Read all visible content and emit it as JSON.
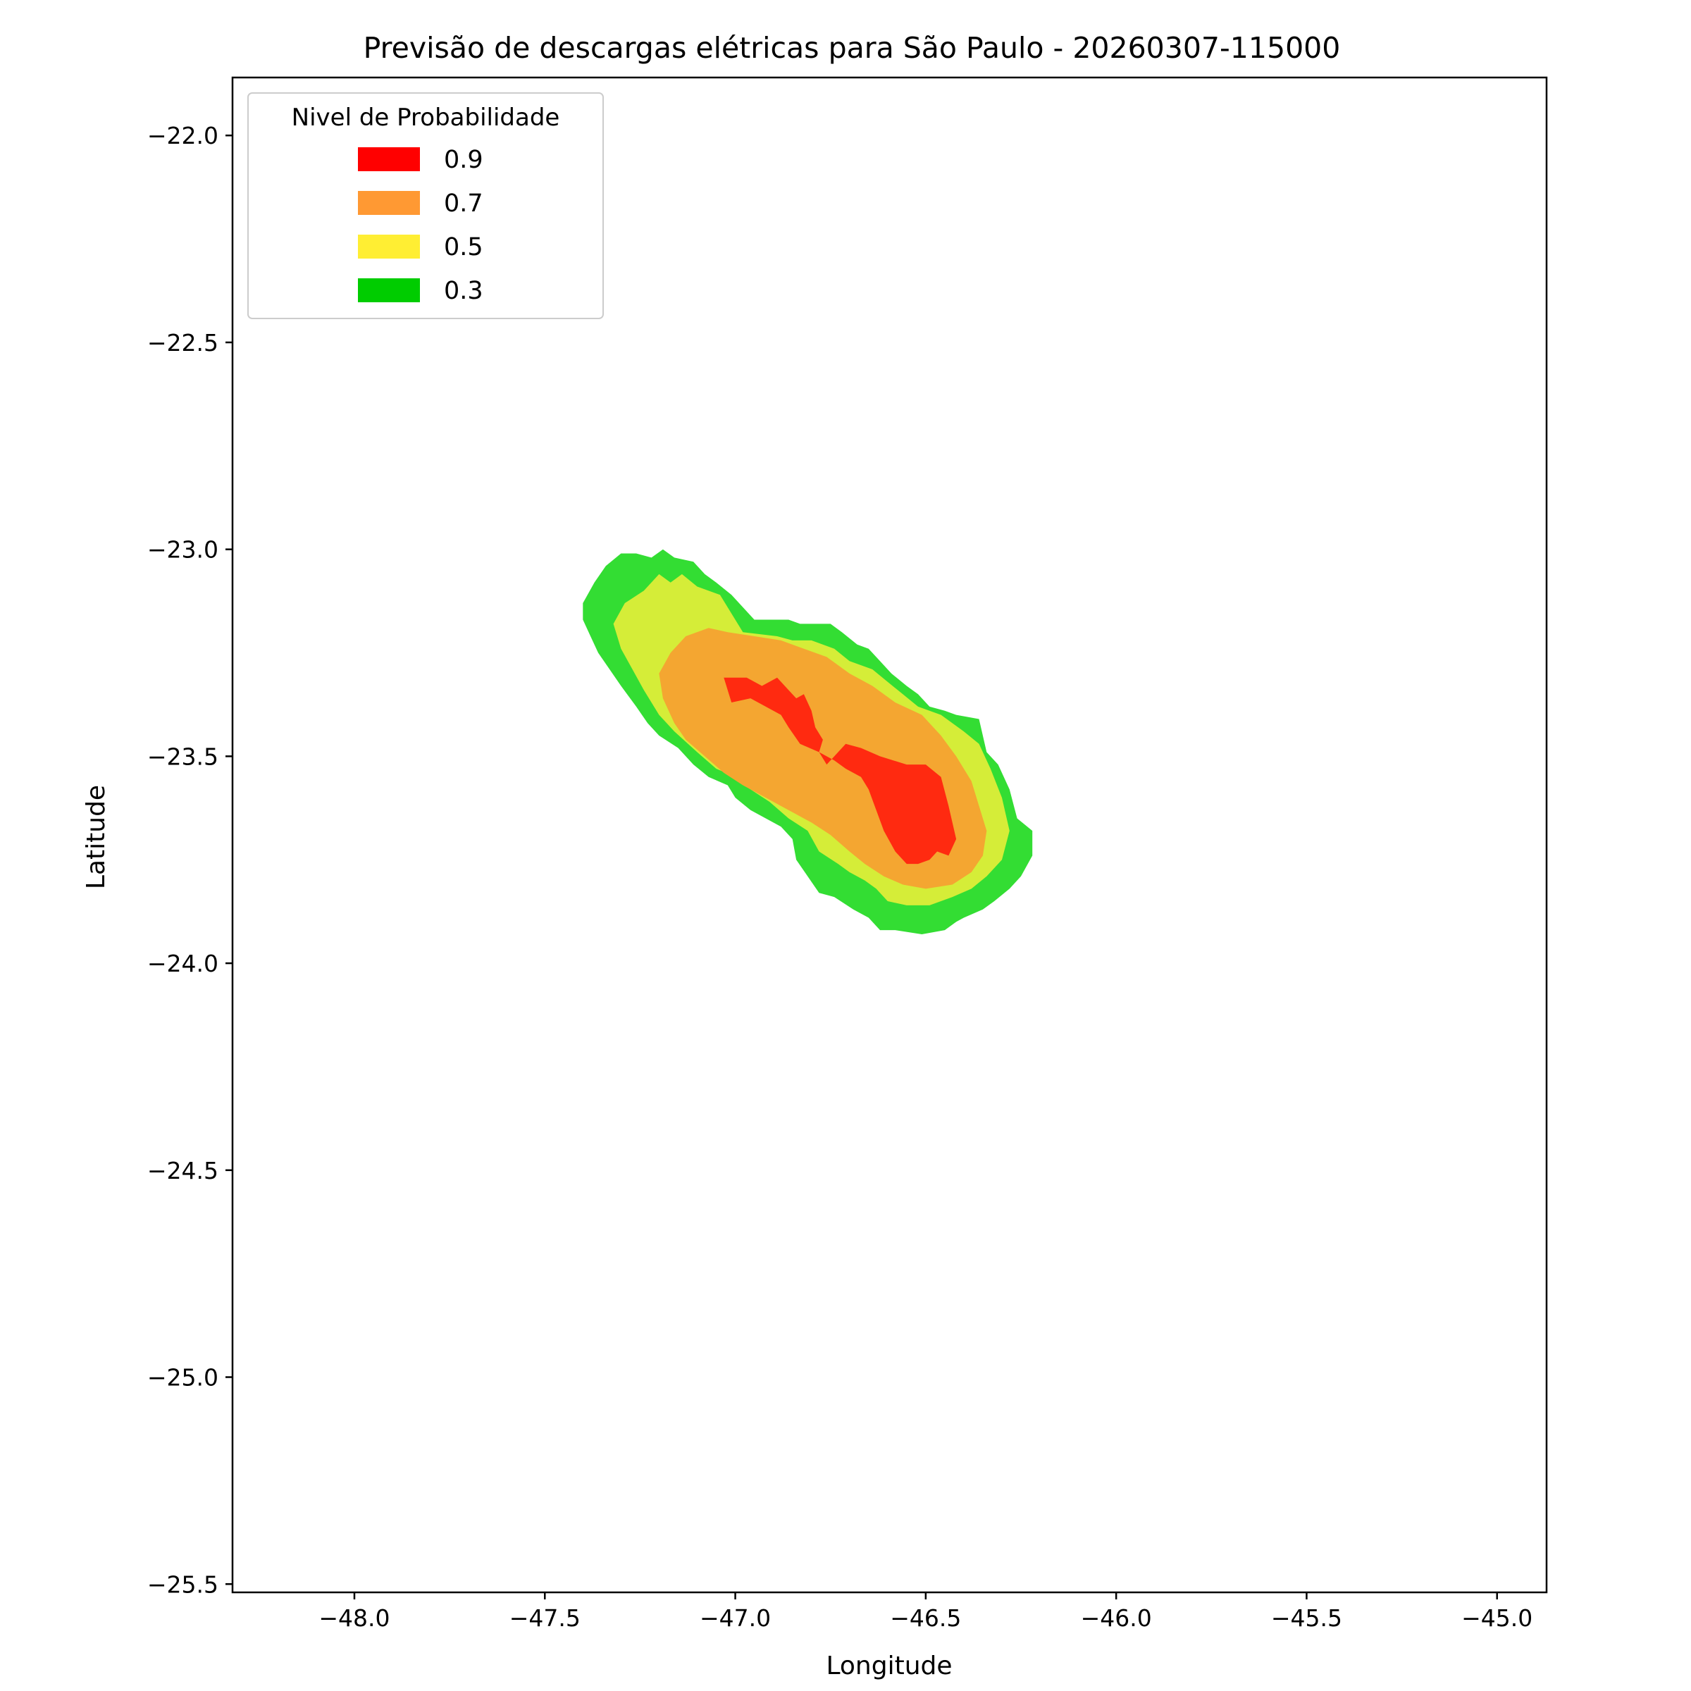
{
  "chart_data": {
    "type": "contour",
    "title": "Previsão de descargas elétricas para São Paulo - 20260307-115000",
    "xlabel": "Longitude",
    "ylabel": "Latitude",
    "xlim": [
      -48.32,
      -44.87
    ],
    "ylim": [
      -25.52,
      -21.86
    ],
    "xticks": [
      -48.0,
      -47.5,
      -47.0,
      -46.5,
      -46.0,
      -45.5,
      -45.0
    ],
    "xtick_labels": [
      "−48.0",
      "−47.5",
      "−47.0",
      "−46.5",
      "−46.0",
      "−45.5",
      "−45.0"
    ],
    "yticks": [
      -22.0,
      -22.5,
      -23.0,
      -23.5,
      -24.0,
      -24.5,
      -25.0,
      -25.5
    ],
    "ytick_labels": [
      "−22.0",
      "−22.5",
      "−23.0",
      "−23.5",
      "−24.0",
      "−24.5",
      "−25.0",
      "−25.5"
    ],
    "grid": false,
    "legend": {
      "title": "Nivel de Probabilidade",
      "placement": "upper-left",
      "entries": [
        {
          "label": "0.9",
          "color": "#ff0000"
        },
        {
          "label": "0.7",
          "color": "#ff9933"
        },
        {
          "label": "0.5",
          "color": "#ffee33"
        },
        {
          "label": "0.3",
          "color": "#00cc00"
        }
      ]
    },
    "regions": [
      {
        "level": "0.3",
        "color": "#33dd33",
        "polygons": [
          [
            [
              -47.19,
              -23.0
            ],
            [
              -47.16,
              -23.02
            ],
            [
              -47.11,
              -23.03
            ],
            [
              -47.08,
              -23.06
            ],
            [
              -47.05,
              -23.08
            ],
            [
              -47.01,
              -23.11
            ],
            [
              -46.98,
              -23.14
            ],
            [
              -46.95,
              -23.17
            ],
            [
              -46.86,
              -23.17
            ],
            [
              -46.83,
              -23.18
            ],
            [
              -46.75,
              -23.18
            ],
            [
              -46.72,
              -23.2
            ],
            [
              -46.68,
              -23.23
            ],
            [
              -46.65,
              -23.24
            ],
            [
              -46.62,
              -23.27
            ],
            [
              -46.59,
              -23.3
            ],
            [
              -46.55,
              -23.33
            ],
            [
              -46.52,
              -23.35
            ],
            [
              -46.49,
              -23.38
            ],
            [
              -46.45,
              -23.39
            ],
            [
              -46.42,
              -23.4
            ],
            [
              -46.36,
              -23.41
            ],
            [
              -46.34,
              -23.49
            ],
            [
              -46.31,
              -23.52
            ],
            [
              -46.28,
              -23.58
            ],
            [
              -46.26,
              -23.65
            ],
            [
              -46.22,
              -23.68
            ],
            [
              -46.22,
              -23.74
            ],
            [
              -46.25,
              -23.79
            ],
            [
              -46.28,
              -23.82
            ],
            [
              -46.32,
              -23.85
            ],
            [
              -46.35,
              -23.87
            ],
            [
              -46.4,
              -23.89
            ],
            [
              -46.42,
              -23.9
            ],
            [
              -46.45,
              -23.92
            ],
            [
              -46.51,
              -23.93
            ],
            [
              -46.58,
              -23.92
            ],
            [
              -46.62,
              -23.92
            ],
            [
              -46.65,
              -23.89
            ],
            [
              -46.69,
              -23.87
            ],
            [
              -46.74,
              -23.84
            ],
            [
              -46.78,
              -23.83
            ],
            [
              -46.81,
              -23.79
            ],
            [
              -46.84,
              -23.75
            ],
            [
              -46.85,
              -23.7
            ],
            [
              -46.88,
              -23.67
            ],
            [
              -46.92,
              -23.65
            ],
            [
              -46.96,
              -23.63
            ],
            [
              -47.0,
              -23.6
            ],
            [
              -47.02,
              -23.57
            ],
            [
              -47.07,
              -23.55
            ],
            [
              -47.11,
              -23.52
            ],
            [
              -47.15,
              -23.48
            ],
            [
              -47.2,
              -23.45
            ],
            [
              -47.23,
              -23.42
            ],
            [
              -47.26,
              -23.38
            ],
            [
              -47.3,
              -23.33
            ],
            [
              -47.33,
              -23.29
            ],
            [
              -47.36,
              -23.25
            ],
            [
              -47.38,
              -23.21
            ],
            [
              -47.4,
              -23.17
            ],
            [
              -47.4,
              -23.13
            ],
            [
              -47.37,
              -23.08
            ],
            [
              -47.34,
              -23.04
            ],
            [
              -47.3,
              -23.01
            ],
            [
              -47.26,
              -23.01
            ],
            [
              -47.22,
              -23.02
            ]
          ]
        ]
      },
      {
        "level": "0.5",
        "color": "#d5ed38",
        "polygons": [
          [
            [
              -47.2,
              -23.06
            ],
            [
              -47.17,
              -23.08
            ],
            [
              -47.14,
              -23.06
            ],
            [
              -47.1,
              -23.09
            ],
            [
              -47.04,
              -23.11
            ],
            [
              -46.98,
              -23.2
            ],
            [
              -46.89,
              -23.21
            ],
            [
              -46.85,
              -23.22
            ],
            [
              -46.8,
              -23.22
            ],
            [
              -46.74,
              -23.24
            ],
            [
              -46.7,
              -23.27
            ],
            [
              -46.64,
              -23.29
            ],
            [
              -46.6,
              -23.32
            ],
            [
              -46.56,
              -23.35
            ],
            [
              -46.52,
              -23.38
            ],
            [
              -46.46,
              -23.4
            ],
            [
              -46.4,
              -23.44
            ],
            [
              -46.36,
              -23.47
            ],
            [
              -46.33,
              -23.53
            ],
            [
              -46.3,
              -23.6
            ],
            [
              -46.28,
              -23.68
            ],
            [
              -46.3,
              -23.75
            ],
            [
              -46.34,
              -23.79
            ],
            [
              -46.38,
              -23.82
            ],
            [
              -46.43,
              -23.84
            ],
            [
              -46.49,
              -23.86
            ],
            [
              -46.55,
              -23.86
            ],
            [
              -46.6,
              -23.85
            ],
            [
              -46.63,
              -23.82
            ],
            [
              -46.66,
              -23.8
            ],
            [
              -46.7,
              -23.78
            ],
            [
              -46.73,
              -23.76
            ],
            [
              -46.78,
              -23.73
            ],
            [
              -46.81,
              -23.68
            ],
            [
              -46.86,
              -23.65
            ],
            [
              -46.91,
              -23.61
            ],
            [
              -46.96,
              -23.58
            ],
            [
              -47.0,
              -23.55
            ],
            [
              -47.05,
              -23.53
            ],
            [
              -47.1,
              -23.49
            ],
            [
              -47.16,
              -23.44
            ],
            [
              -47.2,
              -23.4
            ],
            [
              -47.24,
              -23.34
            ],
            [
              -47.27,
              -23.29
            ],
            [
              -47.3,
              -23.24
            ],
            [
              -47.32,
              -23.18
            ],
            [
              -47.29,
              -23.13
            ],
            [
              -47.24,
              -23.1
            ]
          ]
        ]
      },
      {
        "level": "0.7",
        "color": "#f4a631",
        "polygons": [
          [
            [
              -47.07,
              -23.19
            ],
            [
              -47.02,
              -23.2
            ],
            [
              -46.95,
              -23.21
            ],
            [
              -46.88,
              -23.22
            ],
            [
              -46.82,
              -23.24
            ],
            [
              -46.76,
              -23.26
            ],
            [
              -46.7,
              -23.3
            ],
            [
              -46.64,
              -23.33
            ],
            [
              -46.58,
              -23.37
            ],
            [
              -46.51,
              -23.4
            ],
            [
              -46.46,
              -23.45
            ],
            [
              -46.42,
              -23.5
            ],
            [
              -46.38,
              -23.56
            ],
            [
              -46.36,
              -23.62
            ],
            [
              -46.34,
              -23.68
            ],
            [
              -46.35,
              -23.74
            ],
            [
              -46.38,
              -23.78
            ],
            [
              -46.43,
              -23.81
            ],
            [
              -46.5,
              -23.82
            ],
            [
              -46.56,
              -23.81
            ],
            [
              -46.61,
              -23.79
            ],
            [
              -46.66,
              -23.76
            ],
            [
              -46.7,
              -23.73
            ],
            [
              -46.75,
              -23.69
            ],
            [
              -46.8,
              -23.66
            ],
            [
              -46.86,
              -23.63
            ],
            [
              -46.92,
              -23.6
            ],
            [
              -46.98,
              -23.57
            ],
            [
              -47.03,
              -23.54
            ],
            [
              -47.08,
              -23.5
            ],
            [
              -47.13,
              -23.46
            ],
            [
              -47.16,
              -23.42
            ],
            [
              -47.19,
              -23.36
            ],
            [
              -47.2,
              -23.3
            ],
            [
              -47.17,
              -23.25
            ],
            [
              -47.13,
              -23.21
            ]
          ]
        ]
      },
      {
        "level": "0.9",
        "color": "#ff2a10",
        "polygons": [
          [
            [
              -47.03,
              -23.31
            ],
            [
              -46.97,
              -23.31
            ],
            [
              -46.93,
              -23.33
            ],
            [
              -46.89,
              -23.31
            ],
            [
              -46.86,
              -23.34
            ],
            [
              -46.84,
              -23.36
            ],
            [
              -46.82,
              -23.35
            ],
            [
              -46.8,
              -23.39
            ],
            [
              -46.79,
              -23.43
            ],
            [
              -46.77,
              -23.46
            ],
            [
              -46.78,
              -23.49
            ],
            [
              -46.76,
              -23.52
            ],
            [
              -46.73,
              -23.49
            ],
            [
              -46.71,
              -23.47
            ],
            [
              -46.67,
              -23.48
            ],
            [
              -46.62,
              -23.5
            ],
            [
              -46.55,
              -23.52
            ],
            [
              -46.5,
              -23.52
            ],
            [
              -46.46,
              -23.55
            ],
            [
              -46.44,
              -23.62
            ],
            [
              -46.42,
              -23.7
            ],
            [
              -46.44,
              -23.74
            ],
            [
              -46.47,
              -23.73
            ],
            [
              -46.49,
              -23.75
            ],
            [
              -46.52,
              -23.76
            ],
            [
              -46.55,
              -23.76
            ],
            [
              -46.58,
              -23.73
            ],
            [
              -46.61,
              -23.68
            ],
            [
              -46.63,
              -23.63
            ],
            [
              -46.65,
              -23.58
            ],
            [
              -46.67,
              -23.55
            ],
            [
              -46.71,
              -23.53
            ],
            [
              -46.74,
              -23.51
            ],
            [
              -46.78,
              -23.49
            ],
            [
              -46.83,
              -23.47
            ],
            [
              -46.86,
              -23.43
            ],
            [
              -46.88,
              -23.4
            ],
            [
              -46.92,
              -23.38
            ],
            [
              -46.96,
              -23.36
            ],
            [
              -47.01,
              -23.37
            ]
          ]
        ]
      }
    ]
  }
}
